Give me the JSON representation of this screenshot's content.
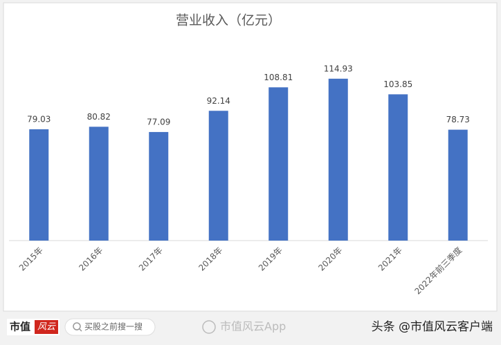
{
  "chart_data": {
    "type": "bar",
    "title": "营业收入（亿元）",
    "categories": [
      "2015年",
      "2016年",
      "2017年",
      "2018年",
      "2019年",
      "2020年",
      "2021年",
      "2022年前三季度"
    ],
    "values": [
      79.03,
      80.82,
      77.09,
      92.14,
      108.81,
      114.93,
      103.85,
      78.73
    ],
    "color": "#4472c4",
    "ylim": [
      0,
      120
    ]
  },
  "footer": {
    "logo_left": "市值",
    "logo_right": "风云",
    "search_placeholder": "买股之前搜一搜",
    "watermark": "市值风云App",
    "source": "头条 @市值风云客户端"
  }
}
